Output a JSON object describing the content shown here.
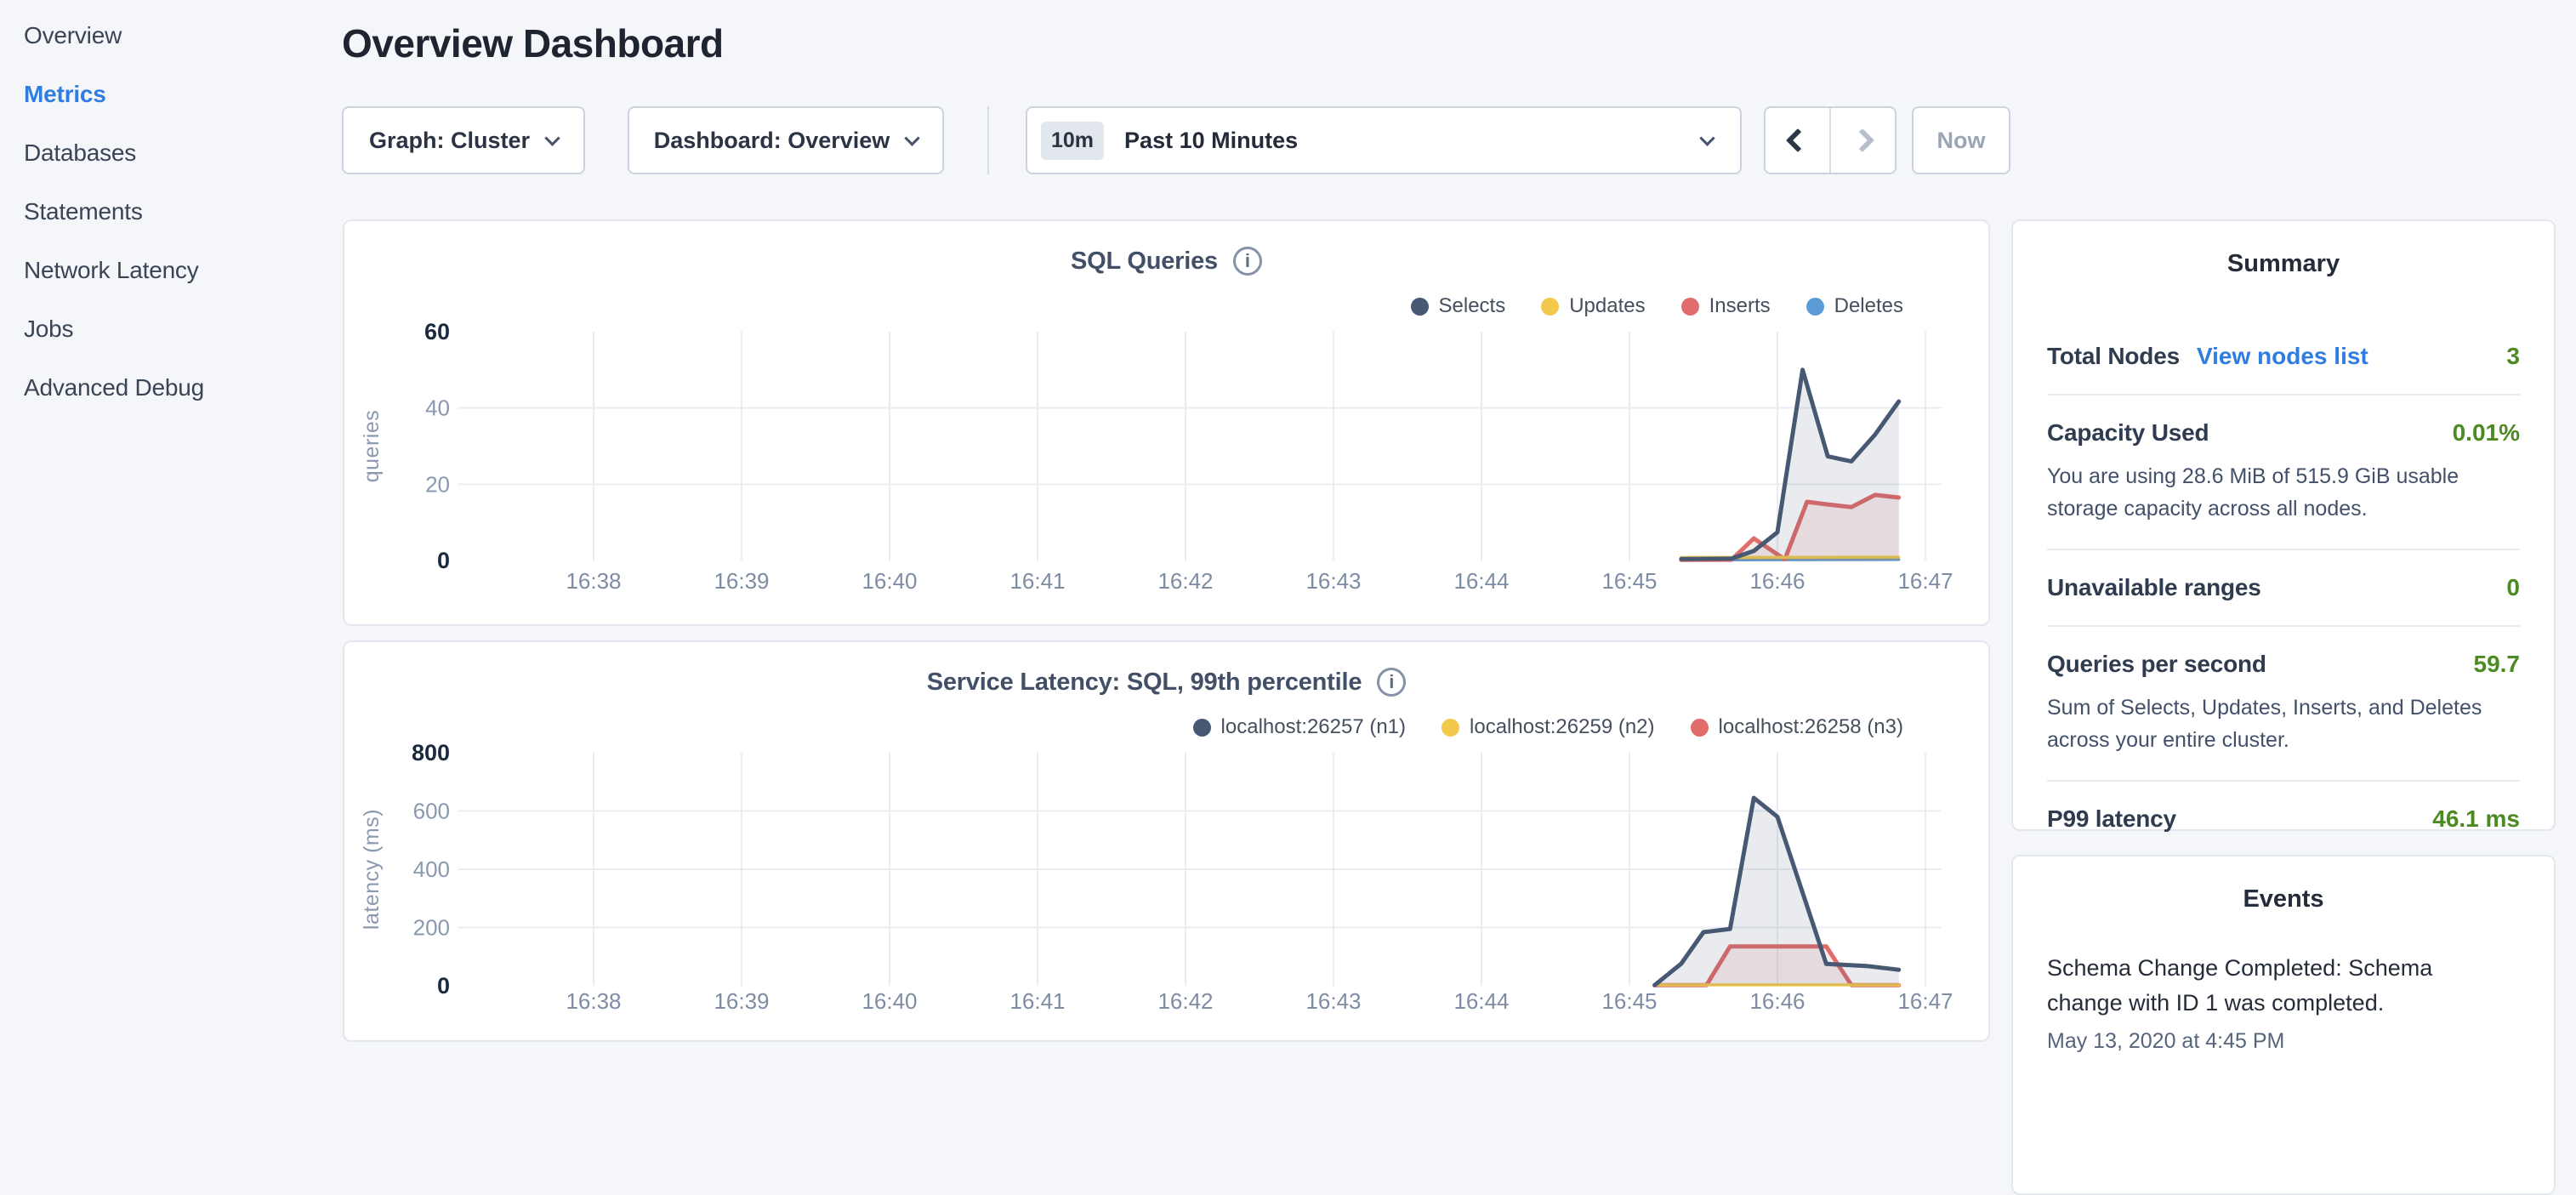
{
  "page": {
    "title": "Overview Dashboard"
  },
  "sidebar": {
    "items": [
      {
        "label": "Overview",
        "active": false
      },
      {
        "label": "Metrics",
        "active": true
      },
      {
        "label": "Databases",
        "active": false
      },
      {
        "label": "Statements",
        "active": false
      },
      {
        "label": "Network Latency",
        "active": false
      },
      {
        "label": "Jobs",
        "active": false
      },
      {
        "label": "Advanced Debug",
        "active": false
      }
    ]
  },
  "toolbar": {
    "graph_dropdown": "Graph: Cluster",
    "dashboard_dropdown": "Dashboard: Overview",
    "time_window_badge": "10m",
    "time_window_label": "Past 10 Minutes",
    "now_label": "Now"
  },
  "summary": {
    "title": "Summary",
    "rows": [
      {
        "label": "Total Nodes",
        "link": "View nodes list",
        "value": "3",
        "subtext": ""
      },
      {
        "label": "Capacity Used",
        "link": "",
        "value": "0.01%",
        "subtext": "You are using 28.6 MiB of 515.9 GiB usable storage capacity across all nodes."
      },
      {
        "label": "Unavailable ranges",
        "link": "",
        "value": "0",
        "subtext": ""
      },
      {
        "label": "Queries per second",
        "link": "",
        "value": "59.7",
        "subtext": "Sum of Selects, Updates, Inserts, and Deletes across your entire cluster."
      },
      {
        "label": "P99 latency",
        "link": "",
        "value": "46.1 ms",
        "subtext": ""
      }
    ]
  },
  "events": {
    "title": "Events",
    "items": [
      {
        "text": "Schema Change Completed: Schema change with ID 1 was completed.",
        "timestamp": "May 13, 2020 at 4:45 PM"
      }
    ]
  },
  "colors": {
    "accent_blue": "#2F7DE1",
    "value_green": "#4C8A22",
    "series_navy": "#475872",
    "series_yellow": "#F2C94C",
    "series_red": "#E06C6C",
    "series_blue": "#5B9BD5"
  },
  "chart_data": [
    {
      "type": "area",
      "title": "SQL Queries",
      "ylabel": "queries",
      "ylim": [
        0,
        60
      ],
      "yticks": [
        0,
        20,
        40,
        60
      ],
      "x_ticks": [
        "16:38",
        "16:39",
        "16:40",
        "16:41",
        "16:42",
        "16:43",
        "16:44",
        "16:45",
        "16:46",
        "16:47"
      ],
      "x_unit_minutes_after_1638": true,
      "grid": true,
      "legend_position": "top-right",
      "series": [
        {
          "name": "Selects",
          "color": "#475872",
          "fill": "rgba(71,88,114,0.12)",
          "width": 5,
          "points": [
            [
              7.35,
              0.4
            ],
            [
              7.69,
              0.5
            ],
            [
              7.84,
              2.5
            ],
            [
              8.0,
              7.4
            ],
            [
              8.17,
              50
            ],
            [
              8.34,
              27.3
            ],
            [
              8.5,
              26
            ],
            [
              8.66,
              33
            ],
            [
              8.82,
              41.7
            ]
          ]
        },
        {
          "name": "Updates",
          "color": "#F2C94C",
          "fill": "rgba(242,201,76,0.15)",
          "width": 3.5,
          "points": [
            [
              7.35,
              0.8
            ],
            [
              8.82,
              0.9
            ]
          ]
        },
        {
          "name": "Inserts",
          "color": "#E06C6C",
          "fill": "rgba(224,108,108,0.13)",
          "width": 5,
          "points": [
            [
              7.35,
              0.15
            ],
            [
              7.69,
              0.2
            ],
            [
              7.84,
              5.8
            ],
            [
              8.05,
              0.3
            ],
            [
              8.2,
              15.4
            ],
            [
              8.34,
              14.7
            ],
            [
              8.5,
              14.0
            ],
            [
              8.66,
              17.2
            ],
            [
              8.82,
              16.5
            ]
          ]
        },
        {
          "name": "Deletes",
          "color": "#5B9BD5",
          "fill": "rgba(91,155,213,0.15)",
          "width": 3.5,
          "points": [
            [
              7.35,
              0.15
            ],
            [
              8.82,
              0.25
            ]
          ]
        }
      ]
    },
    {
      "type": "area",
      "title": "Service Latency: SQL, 99th percentile",
      "ylabel": "latency (ms)",
      "ylim": [
        0,
        800
      ],
      "yticks": [
        0,
        200,
        400,
        600,
        800
      ],
      "x_ticks": [
        "16:38",
        "16:39",
        "16:40",
        "16:41",
        "16:42",
        "16:43",
        "16:44",
        "16:45",
        "16:46",
        "16:47"
      ],
      "x_unit_minutes_after_1638": true,
      "grid": true,
      "legend_position": "top-right",
      "series": [
        {
          "name": "localhost:26257 (n1)",
          "color": "#475872",
          "fill": "rgba(71,88,114,0.12)",
          "width": 5,
          "points": [
            [
              7.17,
              2
            ],
            [
              7.35,
              76
            ],
            [
              7.5,
              184
            ],
            [
              7.68,
              195
            ],
            [
              7.84,
              645
            ],
            [
              8.0,
              580
            ],
            [
              8.33,
              75
            ],
            [
              8.6,
              68
            ],
            [
              8.82,
              55
            ]
          ]
        },
        {
          "name": "localhost:26259 (n2)",
          "color": "#F2C94C",
          "fill": "rgba(242,201,76,0.15)",
          "width": 3.5,
          "points": [
            [
              7.17,
              3
            ],
            [
              8.82,
              3
            ]
          ]
        },
        {
          "name": "localhost:26258 (n3)",
          "color": "#E06C6C",
          "fill": "rgba(224,108,108,0.13)",
          "width": 5,
          "points": [
            [
              7.17,
              2
            ],
            [
              7.52,
              2
            ],
            [
              7.68,
              135
            ],
            [
              8.33,
              135
            ],
            [
              8.5,
              2
            ],
            [
              8.82,
              2
            ]
          ]
        }
      ]
    }
  ]
}
